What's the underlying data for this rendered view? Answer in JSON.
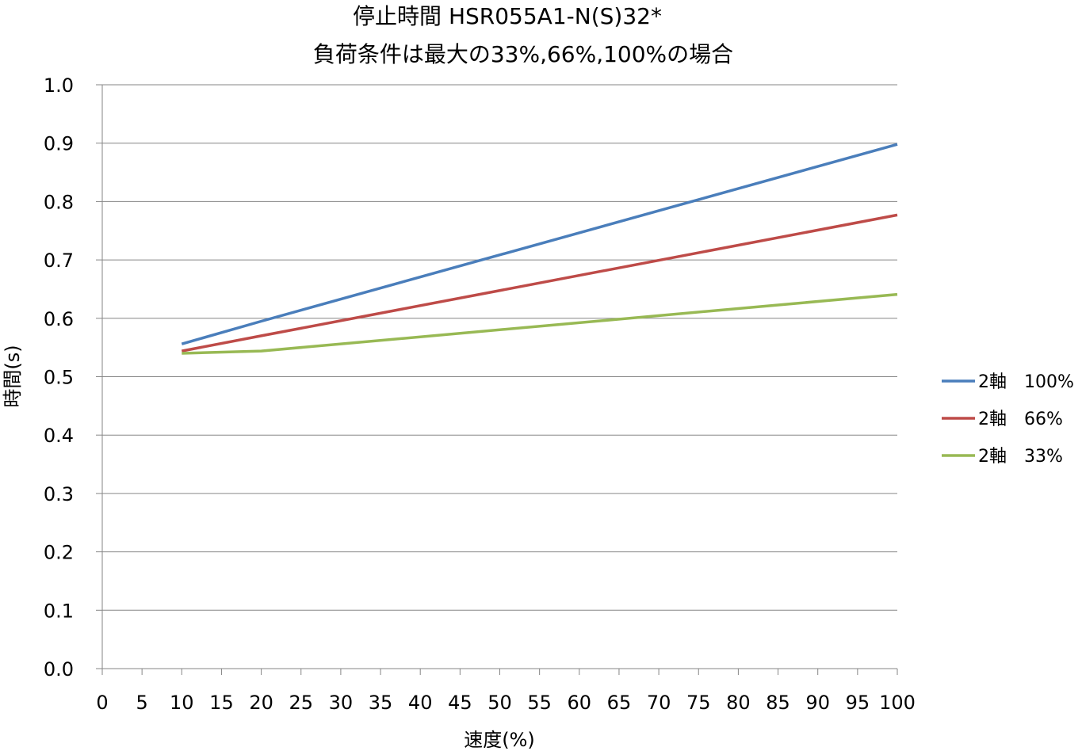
{
  "chart_data": {
    "type": "line",
    "title_line1": "停止時間 HSR055A1-N(S)32*",
    "title_line2": "負荷条件は最大の33%,66%,100%の場合",
    "xlabel": "速度(%)",
    "ylabel": "時間(s)",
    "xlim": [
      0,
      100
    ],
    "ylim": [
      0,
      1.0
    ],
    "x_ticks": [
      "0",
      "5",
      "10",
      "15",
      "20",
      "25",
      "30",
      "35",
      "40",
      "45",
      "50",
      "55",
      "60",
      "65",
      "70",
      "75",
      "80",
      "85",
      "90",
      "95",
      "100"
    ],
    "y_ticks": [
      "0.0",
      "0.1",
      "0.2",
      "0.3",
      "0.4",
      "0.5",
      "0.6",
      "0.7",
      "0.8",
      "0.9",
      "1.0"
    ],
    "grid": "horizontal",
    "legend_position": "right",
    "x": [
      10,
      20,
      100
    ],
    "series": [
      {
        "name": "2軸　100%",
        "color": "#4a7ebb",
        "x": [
          10,
          20,
          100
        ],
        "values": [
          0.556,
          0.595,
          0.898
        ]
      },
      {
        "name": "2軸　66%",
        "color": "#be4b48",
        "x": [
          10,
          20,
          100
        ],
        "values": [
          0.544,
          0.57,
          0.777
        ]
      },
      {
        "name": "2軸　33%",
        "color": "#98b954",
        "x": [
          10,
          20,
          100
        ],
        "values": [
          0.54,
          0.544,
          0.641
        ]
      }
    ]
  }
}
